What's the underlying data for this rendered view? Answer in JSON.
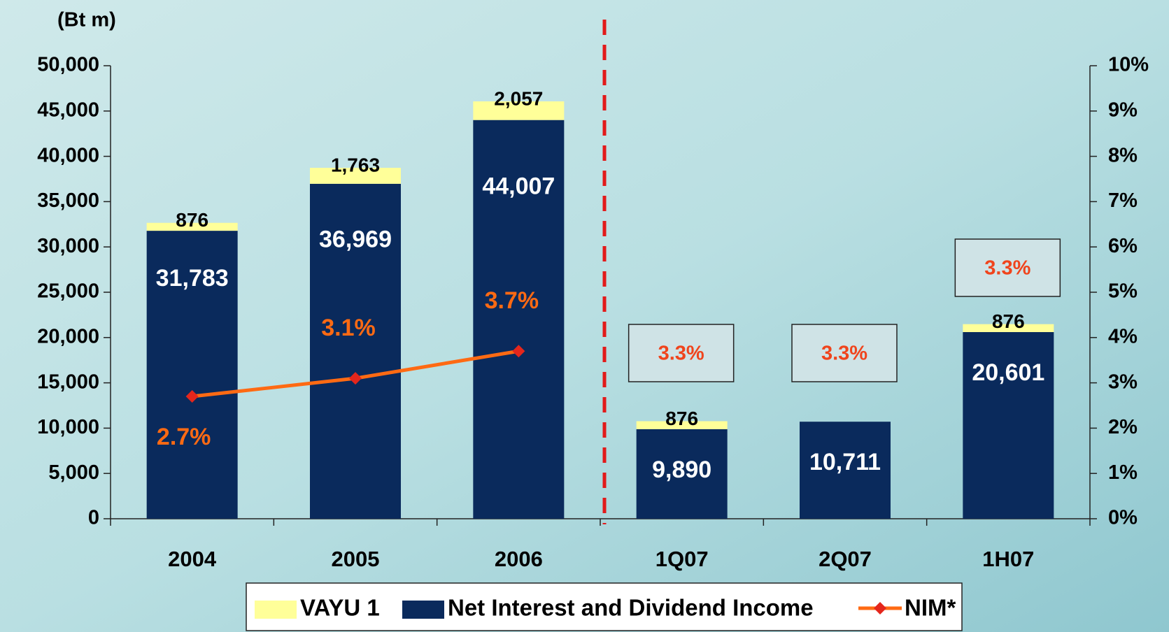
{
  "chart_data": {
    "type": "bar",
    "stacked": true,
    "y_axis_label": "(Bt m)",
    "categories": [
      "2004",
      "2005",
      "2006",
      "1Q07",
      "2Q07",
      "1H07"
    ],
    "series": [
      {
        "name": "Net Interest and Dividend Income",
        "color": "#0a2a5c",
        "values": [
          31783,
          36969,
          44007,
          9890,
          10711,
          20601
        ],
        "value_labels": [
          "31,783",
          "36,969",
          "44,007",
          "9,890",
          "10,711",
          "20,601"
        ]
      },
      {
        "name": "VAYU 1",
        "color": "#ffff99",
        "values": [
          876,
          1763,
          2057,
          876,
          null,
          876
        ],
        "value_labels": [
          "876",
          "1,763",
          "2,057",
          "876",
          null,
          "876"
        ]
      },
      {
        "name": "NIM*",
        "type": "line",
        "axis": "y2",
        "color": "#ff6a13",
        "values": [
          2.7,
          3.1,
          3.7,
          null,
          null,
          null
        ],
        "value_labels": [
          "2.7%",
          "3.1%",
          "3.7%",
          null,
          null,
          null
        ]
      }
    ],
    "annotations": [
      {
        "x": "1Q07",
        "text": "3.3%"
      },
      {
        "x": "2Q07",
        "text": "3.3%"
      },
      {
        "x": "1H07",
        "text": "3.3%"
      }
    ],
    "ylim": [
      0,
      50000
    ],
    "yticks": [
      0,
      {
        "value": 5000,
        "label": "5,000"
      },
      {
        "value": 10000,
        "label": "10,000"
      },
      {
        "value": 15000,
        "label": "15,000"
      },
      {
        "value": 20000,
        "label": "20,000"
      },
      {
        "value": 25000,
        "label": "25,000"
      },
      {
        "value": 30000,
        "label": "30,000"
      },
      {
        "value": 35000,
        "label": "35,000"
      },
      {
        "value": 40000,
        "label": "40,000"
      },
      {
        "value": 45000,
        "label": "45,000"
      },
      {
        "value": 50000,
        "label": "50,000"
      }
    ],
    "y2lim": [
      0,
      10
    ],
    "y2ticks": [
      {
        "value": 0,
        "label": "0%"
      },
      {
        "value": 1,
        "label": "1%"
      },
      {
        "value": 2,
        "label": "2%"
      },
      {
        "value": 3,
        "label": "3%"
      },
      {
        "value": 4,
        "label": "4%"
      },
      {
        "value": 5,
        "label": "5%"
      },
      {
        "value": 6,
        "label": "6%"
      },
      {
        "value": 7,
        "label": "7%"
      },
      {
        "value": 8,
        "label": "8%"
      },
      {
        "value": 9,
        "label": "9%"
      },
      {
        "value": 10,
        "label": "10%"
      }
    ],
    "legend": "bottom"
  }
}
